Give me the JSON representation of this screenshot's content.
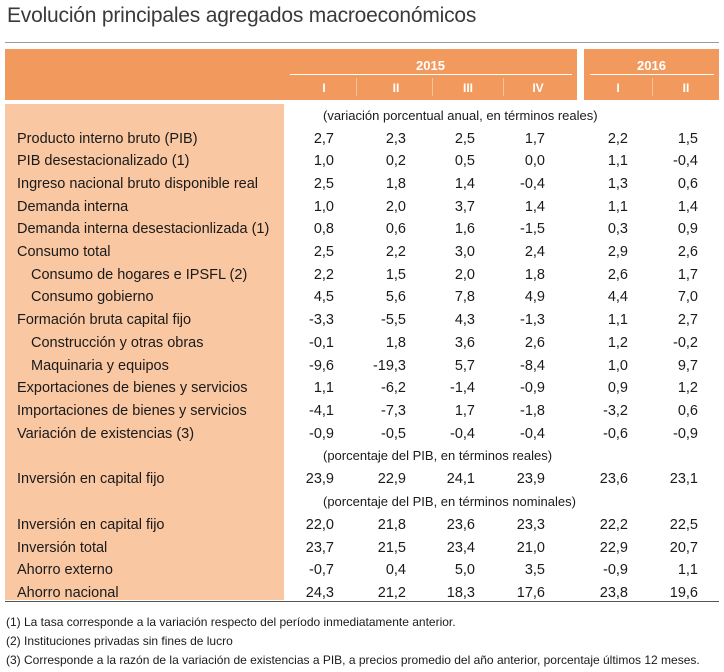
{
  "title": "Evolución principales agregados macroeconómicos",
  "years": [
    "2015",
    "2016"
  ],
  "quarters": [
    "I",
    "II",
    "III",
    "IV",
    "I",
    "II"
  ],
  "sections": [
    {
      "note": "(variación porcentual anual, en términos reales)",
      "rows": [
        {
          "label": "Producto interno bruto (PIB)",
          "values": [
            "2,7",
            "2,3",
            "2,5",
            "1,7",
            "2,2",
            "1,5"
          ]
        },
        {
          "label": "PIB desestacionalizado (1)",
          "values": [
            "1,0",
            "0,2",
            "0,5",
            "0,0",
            "1,1",
            "-0,4"
          ]
        },
        {
          "label": "Ingreso nacional bruto disponible real",
          "values": [
            "2,5",
            "1,8",
            "1,4",
            "-0,4",
            "1,3",
            "0,6"
          ]
        },
        {
          "label": "Demanda interna",
          "values": [
            "1,0",
            "2,0",
            "3,7",
            "1,4",
            "1,1",
            "1,4"
          ]
        },
        {
          "label": "Demanda interna desestacionlizada (1)",
          "values": [
            "0,8",
            "0,6",
            "1,6",
            "-1,5",
            "0,3",
            "0,9"
          ]
        },
        {
          "label": "Consumo total",
          "values": [
            "2,5",
            "2,2",
            "3,0",
            "2,4",
            "2,9",
            "2,6"
          ]
        },
        {
          "label": "Consumo de hogares e IPSFL (2)",
          "indent": true,
          "values": [
            "2,2",
            "1,5",
            "2,0",
            "1,8",
            "2,6",
            "1,7"
          ]
        },
        {
          "label": "Consumo gobierno",
          "indent": true,
          "values": [
            "4,5",
            "5,6",
            "7,8",
            "4,9",
            "4,4",
            "7,0"
          ]
        },
        {
          "label": "Formación bruta capital fijo",
          "values": [
            "-3,3",
            "-5,5",
            "4,3",
            "-1,3",
            "1,1",
            "2,7"
          ]
        },
        {
          "label": "Construcción y otras obras",
          "indent": true,
          "values": [
            "-0,1",
            "1,8",
            "3,6",
            "2,6",
            "1,2",
            "-0,2"
          ]
        },
        {
          "label": "Maquinaria y equipos",
          "indent": true,
          "values": [
            "-9,6",
            "-19,3",
            "5,7",
            "-8,4",
            "1,0",
            "9,7"
          ]
        },
        {
          "label": "Exportaciones de bienes y servicios",
          "values": [
            "1,1",
            "-6,2",
            "-1,4",
            "-0,9",
            "0,9",
            "1,2"
          ]
        },
        {
          "label": "Importaciones de bienes y servicios",
          "values": [
            "-4,1",
            "-7,3",
            "1,7",
            "-1,8",
            "-3,2",
            "0,6"
          ]
        },
        {
          "label": "Variación de existencias (3)",
          "values": [
            "-0,9",
            "-0,5",
            "-0,4",
            "-0,4",
            "-0,6",
            "-0,9"
          ]
        }
      ]
    },
    {
      "note": "(porcentaje del PIB, en términos reales)",
      "rows": [
        {
          "label": "Inversión en capital fijo",
          "values": [
            "23,9",
            "22,9",
            "24,1",
            "23,9",
            "23,6",
            "23,1"
          ]
        }
      ]
    },
    {
      "note": "(porcentaje del PIB, en términos nominales)",
      "rows": [
        {
          "label": "Inversión en capital fijo",
          "values": [
            "22,0",
            "21,8",
            "23,6",
            "23,3",
            "22,2",
            "22,5"
          ]
        },
        {
          "label": "Inversión total",
          "values": [
            "23,7",
            "21,5",
            "23,4",
            "21,0",
            "22,9",
            "20,7"
          ]
        },
        {
          "label": "Ahorro externo",
          "values": [
            "-0,7",
            "0,4",
            "5,0",
            "3,5",
            "-0,9",
            "1,1"
          ]
        },
        {
          "label": "Ahorro nacional",
          "values": [
            "24,3",
            "21,2",
            "18,3",
            "17,6",
            "23,8",
            "19,6"
          ]
        }
      ]
    }
  ],
  "footnotes": [
    "(1) La tasa corresponde a la variación respecto del período inmediatamente anterior.",
    "(2) Instituciones privadas sin fines de lucro",
    "(3) Corresponde a la razón de la variación de existencias a PIB, a precios promedio del año anterior, porcentaje últimos 12 meses."
  ]
}
